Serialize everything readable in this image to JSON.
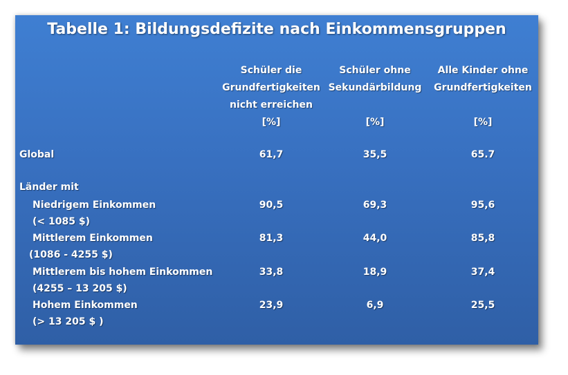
{
  "chart_data": {
    "type": "table",
    "title": "Tabelle 1: Bildungsdefizite  nach Einkommensgruppen",
    "columns": [
      {
        "lines": [
          "Schüler die",
          "Grundfertigkeiten",
          "nicht erreichen"
        ],
        "unit": "[%]"
      },
      {
        "lines": [
          "Schüler ohne",
          "Sekundärbildung"
        ],
        "unit": "[%]"
      },
      {
        "lines": [
          "Alle Kinder ohne",
          "Grundfertigkeiten"
        ],
        "unit": "[%]"
      }
    ],
    "group_label": "Länder mit",
    "rows": [
      {
        "label": "Global",
        "sublabel": "",
        "values": [
          "61,7",
          "35,5",
          "65.7"
        ]
      },
      {
        "label": "Niedrigem Einkommen",
        "sublabel": "(< 1085  $)",
        "values": [
          "90,5",
          "69,3",
          "95,6"
        ]
      },
      {
        "label": "Mittlerem Einkommen",
        "sublabel": "(1086  -  4255  $)",
        "values": [
          "81,3",
          "44,0",
          "85,8"
        ]
      },
      {
        "label": "Mittlerem  bis hohem Einkommen",
        "sublabel": "(4255 – 13 205 $)",
        "values": [
          "33,8",
          "18,9",
          "37,4"
        ]
      },
      {
        "label": "Hohem Einkommen",
        "sublabel": "(> 13 205  $  )",
        "values": [
          "23,9",
          "6,9",
          "25,5"
        ]
      }
    ]
  }
}
